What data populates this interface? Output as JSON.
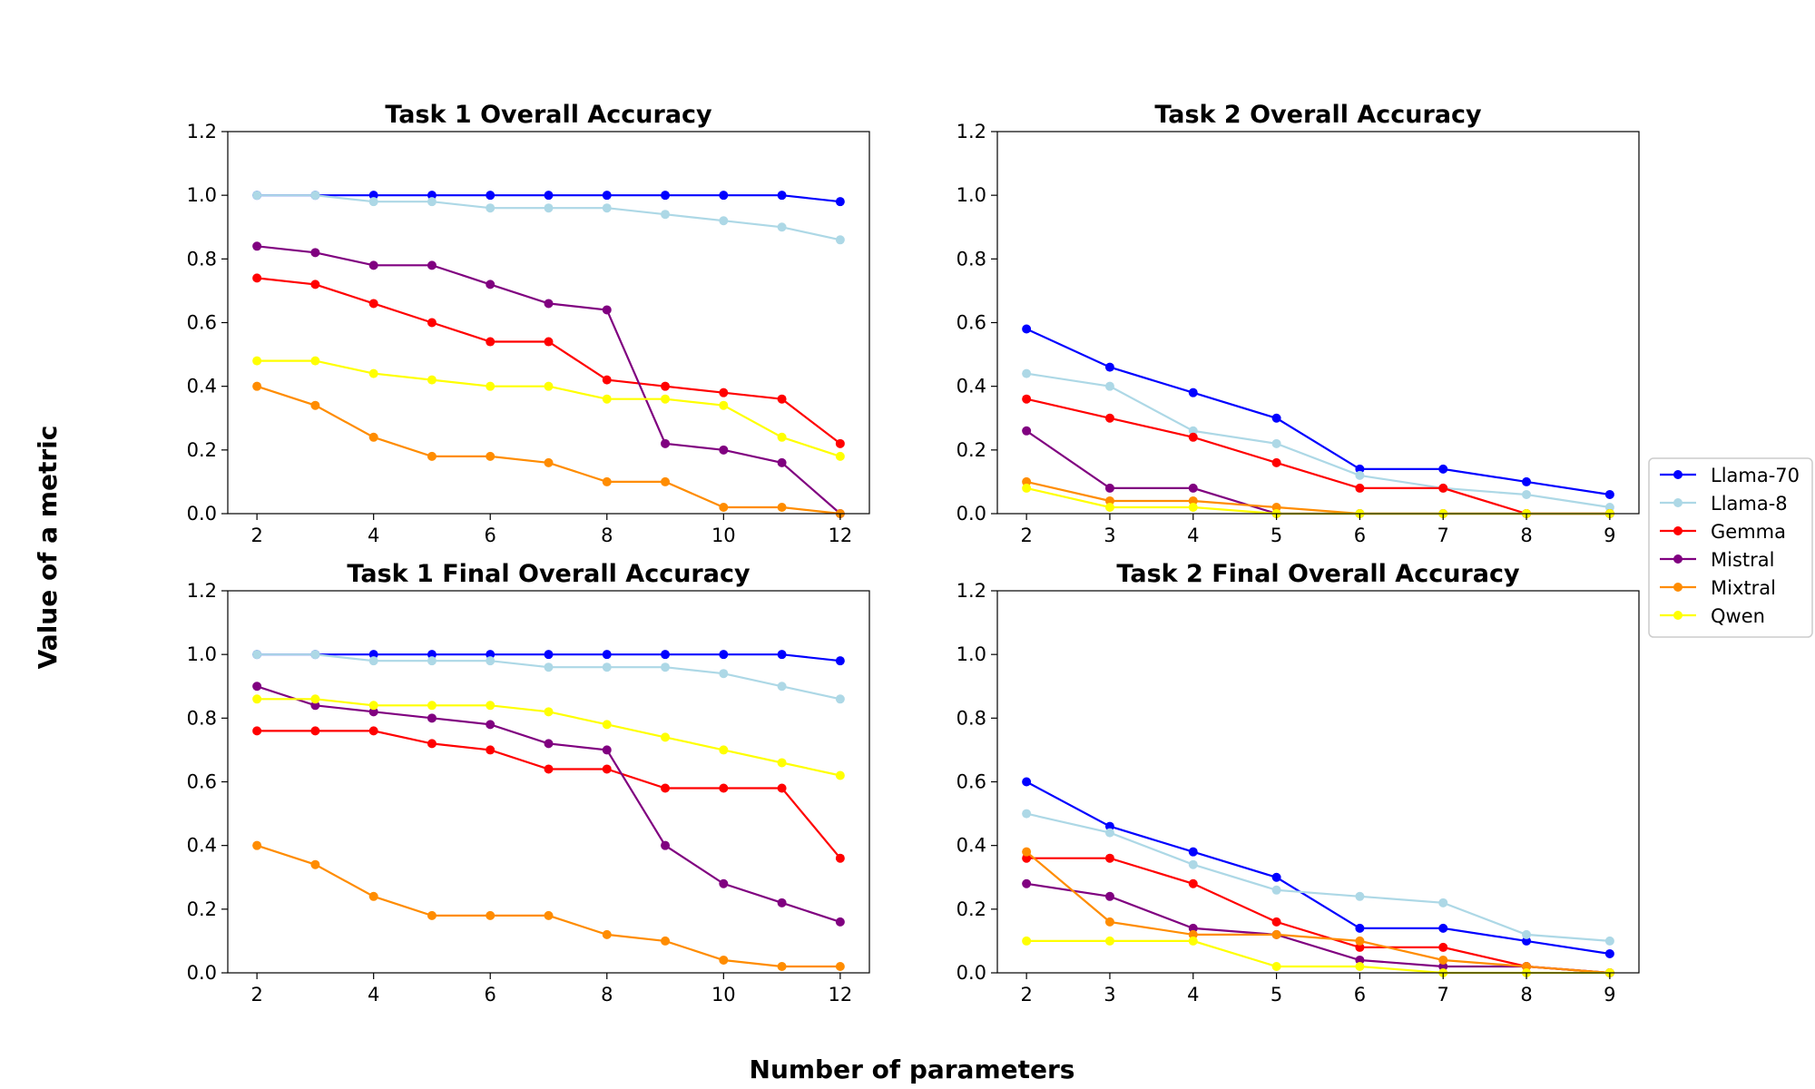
{
  "figure": {
    "xlabel": "Number of parameters",
    "ylabel": "Value of a metric"
  },
  "colors": {
    "Llama-70": "#0000ff",
    "Llama-8": "#add8e6",
    "Gemma": "#ff0000",
    "Mistral": "#800080",
    "Mixtral": "#ff8c00",
    "Qwen": "#ffff00"
  },
  "legend": [
    "Llama-70",
    "Llama-8",
    "Gemma",
    "Mistral",
    "Mixtral",
    "Qwen"
  ],
  "chart_data": [
    {
      "type": "line",
      "title": "Task 1 Overall Accuracy",
      "x": [
        2,
        3,
        4,
        5,
        6,
        7,
        8,
        9,
        10,
        11,
        12
      ],
      "xticks": [
        2,
        4,
        6,
        8,
        10,
        12
      ],
      "xlim": [
        1.5,
        12.5
      ],
      "ylim": [
        0,
        1.2
      ],
      "yticks": [
        "0.0",
        "0.2",
        "0.4",
        "0.6",
        "0.8",
        "1.0",
        "1.2"
      ],
      "series": [
        {
          "name": "Llama-70",
          "values": [
            1.0,
            1.0,
            1.0,
            1.0,
            1.0,
            1.0,
            1.0,
            1.0,
            1.0,
            1.0,
            0.98
          ]
        },
        {
          "name": "Llama-8",
          "values": [
            1.0,
            1.0,
            0.98,
            0.98,
            0.96,
            0.96,
            0.96,
            0.94,
            0.92,
            0.9,
            0.86
          ]
        },
        {
          "name": "Gemma",
          "values": [
            0.74,
            0.72,
            0.66,
            0.6,
            0.54,
            0.54,
            0.42,
            0.4,
            0.38,
            0.36,
            0.22
          ]
        },
        {
          "name": "Mistral",
          "values": [
            0.84,
            0.82,
            0.78,
            0.78,
            0.72,
            0.66,
            0.64,
            0.22,
            0.2,
            0.16,
            0.0
          ]
        },
        {
          "name": "Mixtral",
          "values": [
            0.4,
            0.34,
            0.24,
            0.18,
            0.18,
            0.16,
            0.1,
            0.1,
            0.02,
            0.02,
            0.0
          ]
        },
        {
          "name": "Qwen",
          "values": [
            0.48,
            0.48,
            0.44,
            0.42,
            0.4,
            0.4,
            0.36,
            0.36,
            0.34,
            0.24,
            0.18
          ]
        }
      ]
    },
    {
      "type": "line",
      "title": "Task 2 Overall Accuracy",
      "x": [
        2,
        3,
        4,
        5,
        6,
        7,
        8,
        9
      ],
      "xticks": [
        2,
        3,
        4,
        5,
        6,
        7,
        8,
        9
      ],
      "xlim": [
        1.65,
        9.35
      ],
      "ylim": [
        0,
        1.2
      ],
      "yticks": [
        "0.0",
        "0.2",
        "0.4",
        "0.6",
        "0.8",
        "1.0",
        "1.2"
      ],
      "series": [
        {
          "name": "Llama-70",
          "values": [
            0.58,
            0.46,
            0.38,
            0.3,
            0.14,
            0.14,
            0.1,
            0.06
          ]
        },
        {
          "name": "Llama-8",
          "values": [
            0.44,
            0.4,
            0.26,
            0.22,
            0.12,
            0.08,
            0.06,
            0.02
          ]
        },
        {
          "name": "Gemma",
          "values": [
            0.36,
            0.3,
            0.24,
            0.16,
            0.08,
            0.08,
            0.0,
            0.0
          ]
        },
        {
          "name": "Mistral",
          "values": [
            0.26,
            0.08,
            0.08,
            0.0,
            0.0,
            0.0,
            0.0,
            0.0
          ]
        },
        {
          "name": "Mixtral",
          "values": [
            0.1,
            0.04,
            0.04,
            0.02,
            0.0,
            0.0,
            0.0,
            0.0
          ]
        },
        {
          "name": "Qwen",
          "values": [
            0.08,
            0.02,
            0.02,
            0.0,
            0.0,
            0.0,
            0.0,
            0.0
          ]
        }
      ]
    },
    {
      "type": "line",
      "title": "Task 1 Final Overall Accuracy",
      "x": [
        2,
        3,
        4,
        5,
        6,
        7,
        8,
        9,
        10,
        11,
        12
      ],
      "xticks": [
        2,
        4,
        6,
        8,
        10,
        12
      ],
      "xlim": [
        1.5,
        12.5
      ],
      "ylim": [
        0,
        1.2
      ],
      "yticks": [
        "0.0",
        "0.2",
        "0.4",
        "0.6",
        "0.8",
        "1.0",
        "1.2"
      ],
      "series": [
        {
          "name": "Llama-70",
          "values": [
            1.0,
            1.0,
            1.0,
            1.0,
            1.0,
            1.0,
            1.0,
            1.0,
            1.0,
            1.0,
            0.98
          ]
        },
        {
          "name": "Llama-8",
          "values": [
            1.0,
            1.0,
            0.98,
            0.98,
            0.98,
            0.96,
            0.96,
            0.96,
            0.94,
            0.9,
            0.86
          ]
        },
        {
          "name": "Gemma",
          "values": [
            0.76,
            0.76,
            0.76,
            0.72,
            0.7,
            0.64,
            0.64,
            0.58,
            0.58,
            0.58,
            0.36
          ]
        },
        {
          "name": "Mistral",
          "values": [
            0.9,
            0.84,
            0.82,
            0.8,
            0.78,
            0.72,
            0.7,
            0.4,
            0.28,
            0.22,
            0.16
          ]
        },
        {
          "name": "Mixtral",
          "values": [
            0.4,
            0.34,
            0.24,
            0.18,
            0.18,
            0.18,
            0.12,
            0.1,
            0.04,
            0.02,
            0.02
          ]
        },
        {
          "name": "Qwen",
          "values": [
            0.86,
            0.86,
            0.84,
            0.84,
            0.84,
            0.82,
            0.78,
            0.74,
            0.7,
            0.66,
            0.62
          ]
        }
      ]
    },
    {
      "type": "line",
      "title": "Task 2 Final Overall Accuracy",
      "x": [
        2,
        3,
        4,
        5,
        6,
        7,
        8,
        9
      ],
      "xticks": [
        2,
        3,
        4,
        5,
        6,
        7,
        8,
        9
      ],
      "xlim": [
        1.65,
        9.35
      ],
      "ylim": [
        0,
        1.2
      ],
      "yticks": [
        "0.0",
        "0.2",
        "0.4",
        "0.6",
        "0.8",
        "1.0",
        "1.2"
      ],
      "series": [
        {
          "name": "Llama-70",
          "values": [
            0.6,
            0.46,
            0.38,
            0.3,
            0.14,
            0.14,
            0.1,
            0.06
          ]
        },
        {
          "name": "Llama-8",
          "values": [
            0.5,
            0.44,
            0.34,
            0.26,
            0.24,
            0.22,
            0.12,
            0.1
          ]
        },
        {
          "name": "Gemma",
          "values": [
            0.36,
            0.36,
            0.28,
            0.16,
            0.08,
            0.08,
            0.02,
            0.0
          ]
        },
        {
          "name": "Mistral",
          "values": [
            0.28,
            0.24,
            0.14,
            0.12,
            0.04,
            0.02,
            0.02,
            0.0
          ]
        },
        {
          "name": "Mixtral",
          "values": [
            0.38,
            0.16,
            0.12,
            0.12,
            0.1,
            0.04,
            0.02,
            0.0
          ]
        },
        {
          "name": "Qwen",
          "values": [
            0.1,
            0.1,
            0.1,
            0.02,
            0.02,
            0.0,
            0.0,
            0.0
          ]
        }
      ]
    }
  ]
}
